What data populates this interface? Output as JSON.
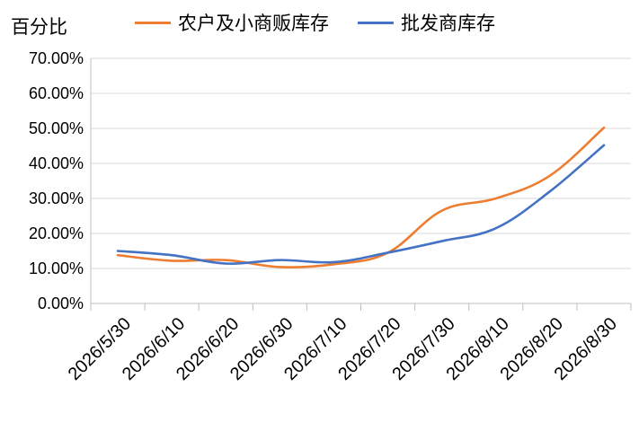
{
  "chart_data": {
    "type": "line",
    "ylabel": "百分比",
    "x": [
      "2026/5/30",
      "2026/6/10",
      "2026/6/20",
      "2026/6/30",
      "2026/7/10",
      "2026/7/20",
      "2026/7/30",
      "2026/8/10",
      "2026/8/20",
      "2026/8/30"
    ],
    "ylim": [
      0,
      70
    ],
    "yticks": [
      "0.00%",
      "10.00%",
      "20.00%",
      "30.00%",
      "40.00%",
      "50.00%",
      "60.00%",
      "70.00%"
    ],
    "grid": "horizontal",
    "legend_position": "top",
    "series": [
      {
        "name": "农户及小商贩库存",
        "color": "#ED7D31",
        "values": [
          13.8,
          12.2,
          12.4,
          10.4,
          11.2,
          14.5,
          26.5,
          30.0,
          36.5,
          50.2
        ]
      },
      {
        "name": "批发商库存",
        "color": "#4472C4",
        "values": [
          15.0,
          13.8,
          11.4,
          12.4,
          11.8,
          14.5,
          17.8,
          21.5,
          32.0,
          45.2
        ]
      }
    ]
  }
}
